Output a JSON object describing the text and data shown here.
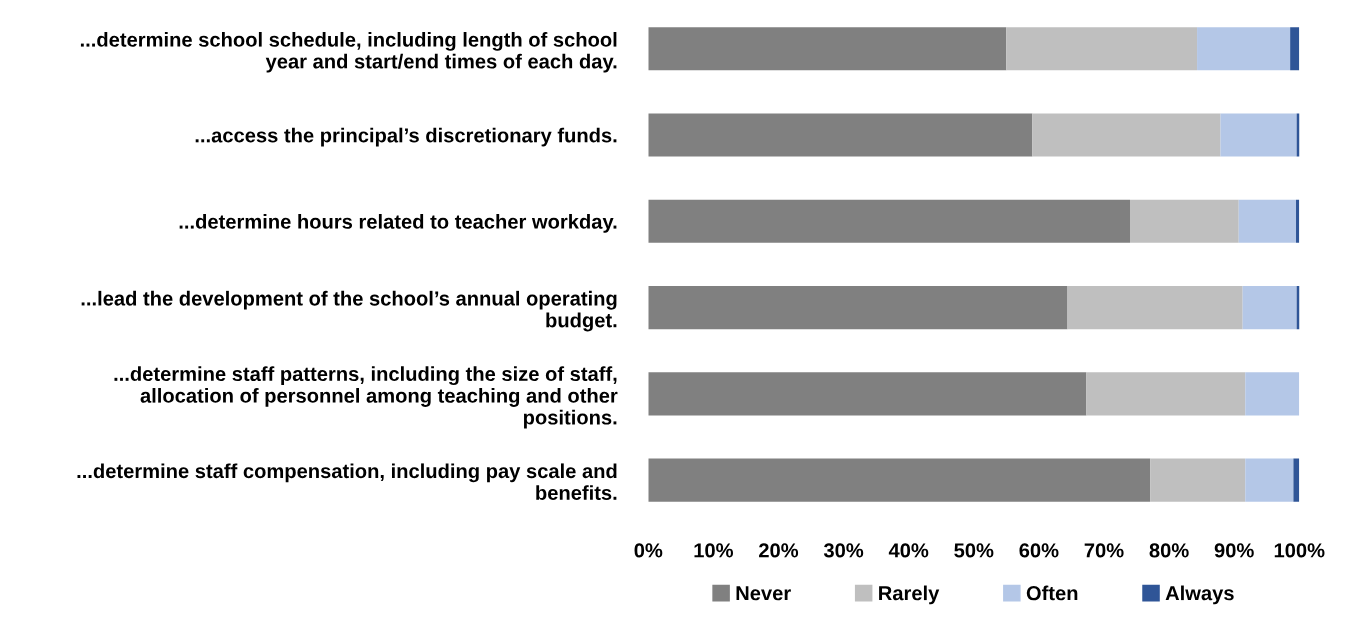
{
  "chart_data": {
    "type": "bar",
    "orientation": "horizontal",
    "stacked": true,
    "categories": [
      "...determine school schedule, including length of school\nyear and start/end times of each day.",
      "...access the principal’s discretionary funds.",
      "...determine hours related to teacher workday.",
      "...lead the development of the school’s annual operating\nbudget.",
      "...determine staff patterns, including the size of staff,\nallocation of personnel among teaching and other\npositions.",
      "...determine staff compensation, including pay scale and\nbenefits."
    ],
    "series": [
      {
        "name": "Never",
        "color": "#808080",
        "values": [
          55.0,
          59.0,
          74.0,
          64.4,
          67.3,
          77.1
        ]
      },
      {
        "name": "Rarely",
        "color": "#bfbfbf",
        "values": [
          29.3,
          28.9,
          16.7,
          26.9,
          24.4,
          14.6
        ]
      },
      {
        "name": "Often",
        "color": "#b4c7e7",
        "values": [
          14.3,
          11.7,
          8.8,
          8.3,
          8.3,
          7.4
        ]
      },
      {
        "name": "Always",
        "color": "#2f5597",
        "values": [
          1.4,
          0.5,
          0.5,
          0.5,
          0,
          0.9
        ]
      }
    ],
    "xlim": [
      0,
      100
    ],
    "xticks": [
      {
        "value": 0,
        "label": "0%"
      },
      {
        "value": 10,
        "label": "10%"
      },
      {
        "value": 20,
        "label": "20%"
      },
      {
        "value": 30,
        "label": "30%"
      },
      {
        "value": 40,
        "label": "40%"
      },
      {
        "value": 50,
        "label": "50%"
      },
      {
        "value": 60,
        "label": "60%"
      },
      {
        "value": 70,
        "label": "70%"
      },
      {
        "value": 80,
        "label": "80%"
      },
      {
        "value": 90,
        "label": "90%"
      },
      {
        "value": 100,
        "label": "100%"
      }
    ],
    "legend": "bottom",
    "grid": false
  }
}
